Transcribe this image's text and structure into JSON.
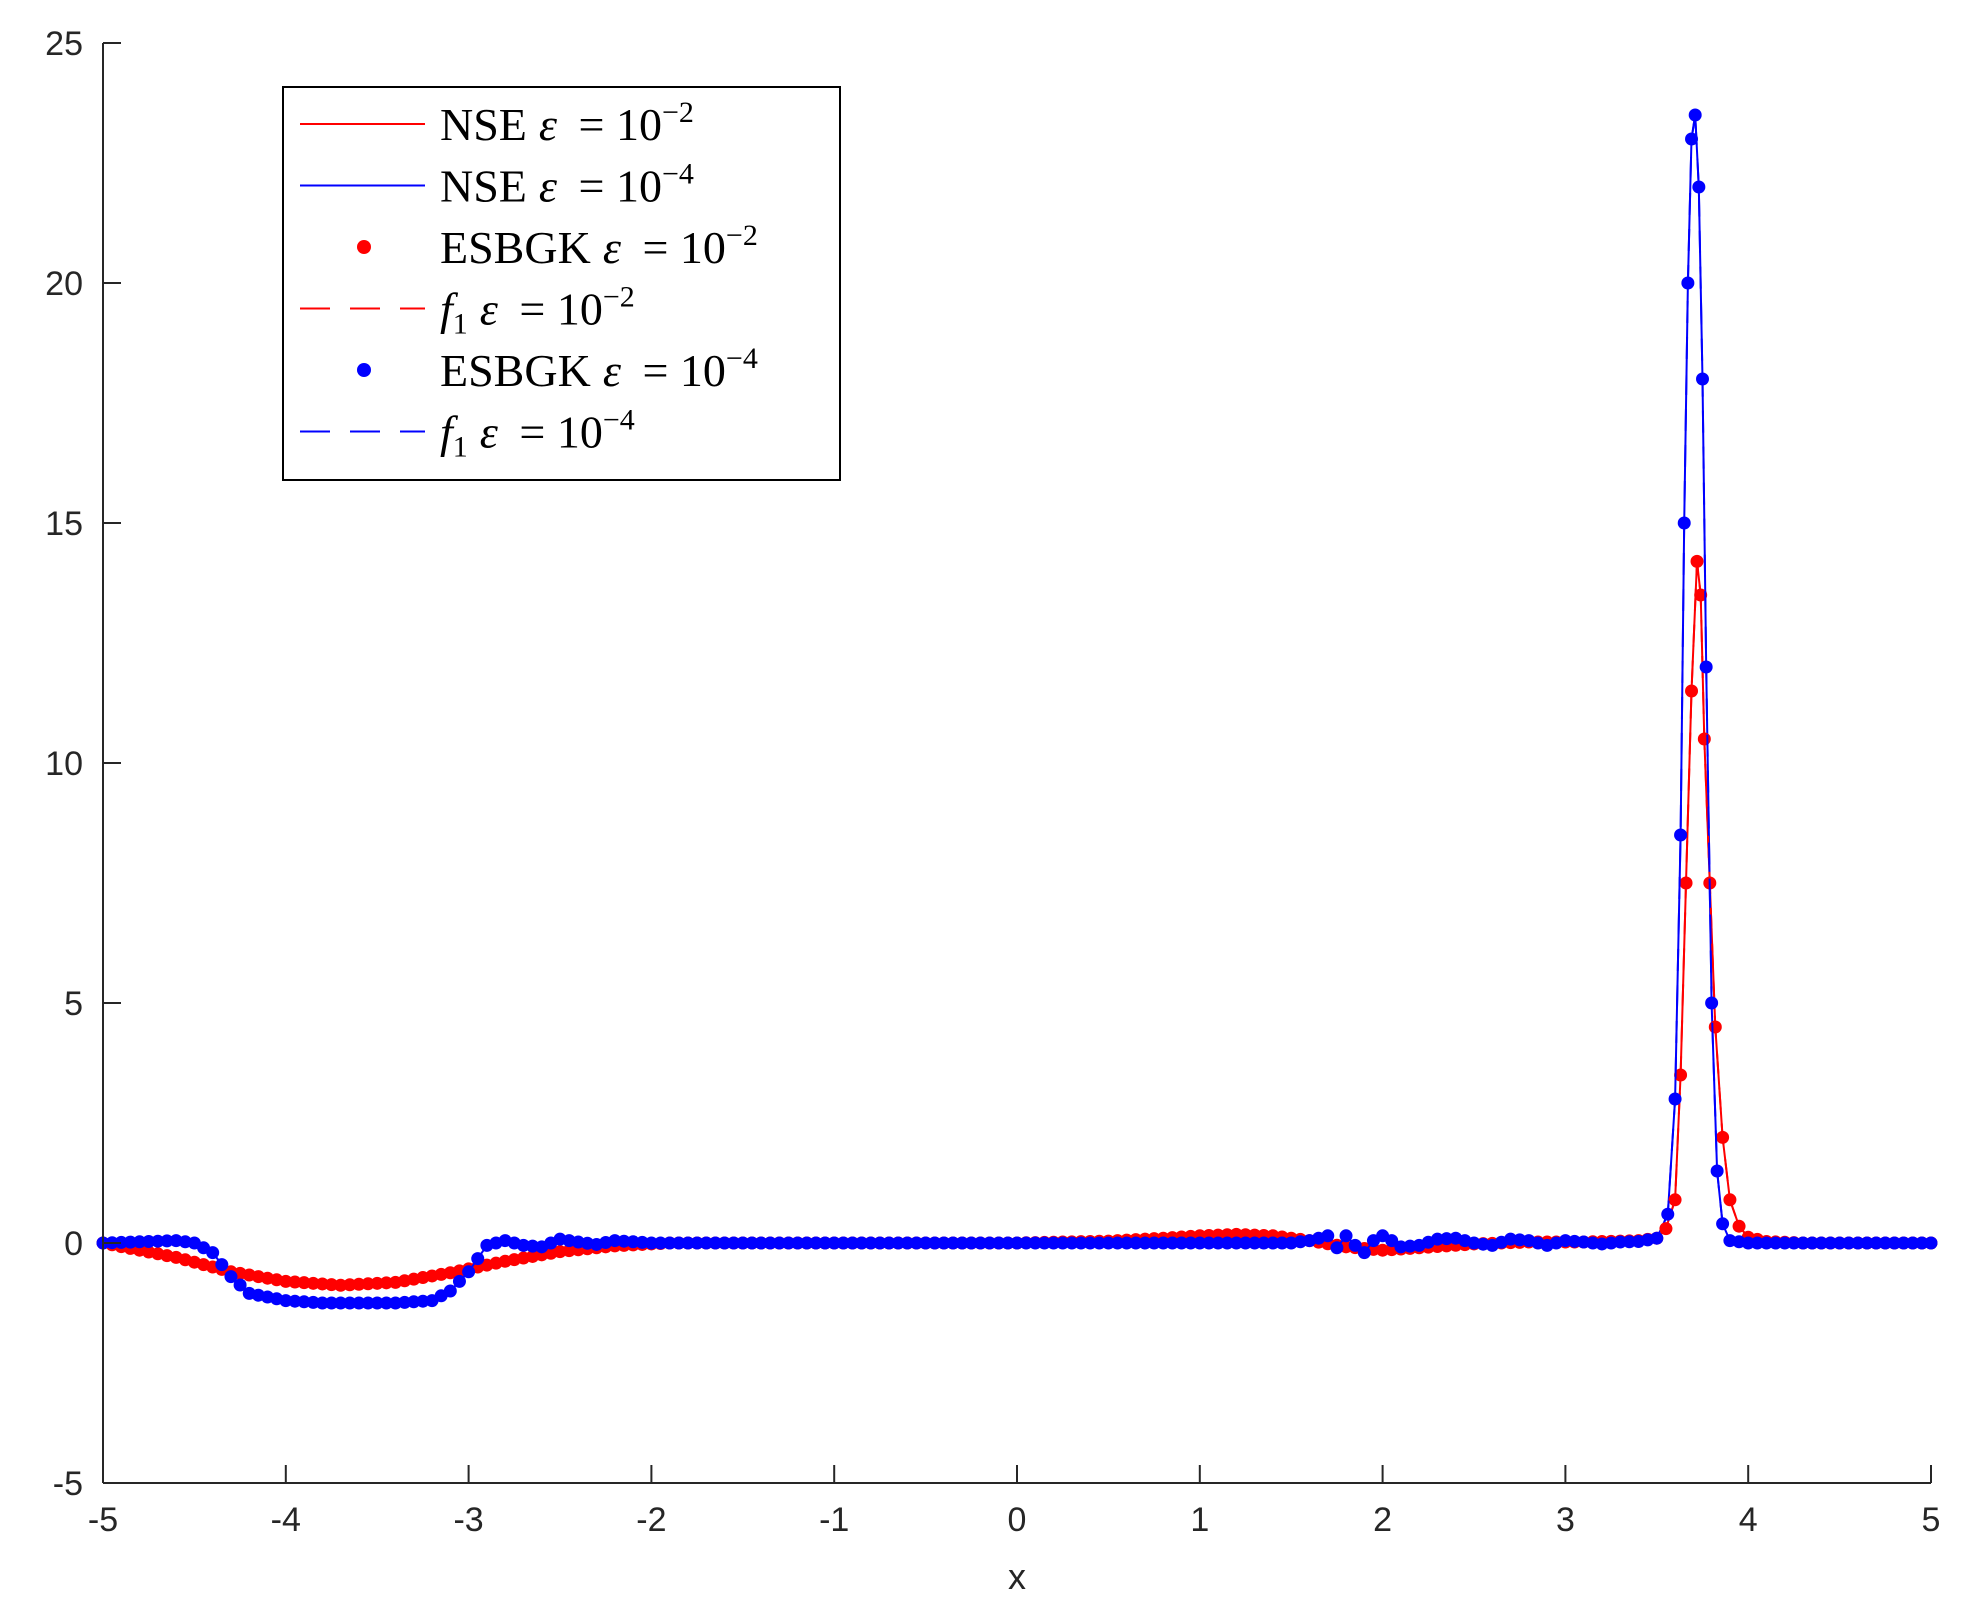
{
  "chart_data": {
    "type": "line",
    "title": "",
    "xlabel": "x",
    "ylabel": "",
    "xlim": [
      -5,
      5
    ],
    "ylim": [
      -5,
      25
    ],
    "xticks": [
      "-5",
      "-4",
      "-3",
      "-2",
      "-1",
      "0",
      "1",
      "2",
      "3",
      "4",
      "5"
    ],
    "yticks": [
      "-5",
      "0",
      "5",
      "10",
      "15",
      "20",
      "25"
    ],
    "grid": false,
    "legend_position": "top-left",
    "series": [
      {
        "name": "NSE ε = 10^-2",
        "style": "solid",
        "color": "#ff0000",
        "x": [
          -5,
          -4.6,
          -4.3,
          -4.0,
          -3.7,
          -3.4,
          -3.1,
          -2.8,
          -2.5,
          -2.2,
          -1.9,
          -1.5,
          -1,
          -0.5,
          0,
          0.5,
          0.8,
          1.0,
          1.2,
          1.4,
          1.6,
          1.8,
          2.0,
          2.2,
          2.5,
          2.8,
          3.1,
          3.4,
          3.5,
          3.55,
          3.6,
          3.63,
          3.66,
          3.69,
          3.72,
          3.74,
          3.76,
          3.79,
          3.82,
          3.86,
          3.9,
          3.95,
          4.0,
          4.1,
          4.3,
          4.6,
          5
        ],
        "y": [
          0,
          -0.3,
          -0.6,
          -0.8,
          -0.88,
          -0.82,
          -0.62,
          -0.38,
          -0.18,
          -0.06,
          0,
          0,
          0,
          0,
          0,
          0.04,
          0.1,
          0.15,
          0.18,
          0.15,
          0.05,
          -0.08,
          -0.15,
          -0.1,
          -0.02,
          0.02,
          0.02,
          0.05,
          0.1,
          0.3,
          0.9,
          3.5,
          7.5,
          11.5,
          14.2,
          13.5,
          10.5,
          7.5,
          4.5,
          2.2,
          0.9,
          0.35,
          0.12,
          0.03,
          0,
          0,
          0
        ]
      },
      {
        "name": "NSE ε = 10^-4",
        "style": "solid",
        "color": "#0000ff",
        "x": [
          -5,
          -4.6,
          -4.5,
          -4.4,
          -4.3,
          -4.2,
          -4.0,
          -3.8,
          -3.6,
          -3.4,
          -3.2,
          -3.1,
          -3.0,
          -2.9,
          -2.8,
          -2.7,
          -2.6,
          -2.5,
          -2.4,
          -2.3,
          -2.2,
          -2.0,
          -1.5,
          -1,
          0,
          1,
          1.5,
          1.6,
          1.7,
          1.75,
          1.8,
          1.85,
          1.9,
          1.95,
          2.0,
          2.05,
          2.1,
          2.2,
          2.3,
          2.4,
          2.5,
          2.6,
          2.7,
          2.8,
          2.9,
          3.0,
          3.1,
          3.2,
          3.3,
          3.4,
          3.5,
          3.56,
          3.6,
          3.63,
          3.65,
          3.67,
          3.69,
          3.71,
          3.73,
          3.75,
          3.77,
          3.8,
          3.83,
          3.86,
          3.9,
          4,
          4.5,
          5
        ],
        "y": [
          0,
          0.05,
          0,
          -0.2,
          -0.7,
          -1.05,
          -1.2,
          -1.25,
          -1.25,
          -1.25,
          -1.2,
          -1.0,
          -0.6,
          -0.05,
          0.05,
          -0.05,
          -0.08,
          0.08,
          0.02,
          -0.03,
          0.05,
          0,
          0,
          0,
          0,
          0,
          0,
          0.05,
          0.15,
          -0.1,
          0.15,
          -0.05,
          -0.2,
          0.05,
          0.15,
          0.05,
          -0.08,
          -0.05,
          0.08,
          0.1,
          0,
          -0.05,
          0.08,
          0.05,
          -0.05,
          0.05,
          0.02,
          -0.02,
          0.02,
          0.03,
          0.1,
          0.6,
          3.0,
          8.5,
          15.0,
          20.0,
          23.0,
          23.5,
          22.0,
          18.0,
          12.0,
          5.0,
          1.5,
          0.4,
          0.05,
          0,
          0,
          0
        ]
      },
      {
        "name": "ESBGK ε = 10^-2",
        "style": "dots",
        "color": "#ff0000",
        "x": [
          -5,
          -4.6,
          -4.3,
          -4.0,
          -3.7,
          -3.4,
          -3.1,
          -2.8,
          -2.5,
          -2.2,
          -1.9,
          -1.5,
          -1,
          -0.5,
          0,
          0.5,
          0.8,
          1.0,
          1.2,
          1.4,
          1.6,
          1.8,
          2.0,
          2.2,
          2.5,
          2.8,
          3.1,
          3.4,
          3.5,
          3.55,
          3.6,
          3.63,
          3.66,
          3.69,
          3.72,
          3.74,
          3.76,
          3.79,
          3.82,
          3.86,
          3.9,
          3.95,
          4.0,
          4.1,
          4.3,
          4.6,
          5
        ],
        "y": [
          0,
          -0.3,
          -0.6,
          -0.8,
          -0.88,
          -0.82,
          -0.62,
          -0.38,
          -0.18,
          -0.06,
          0,
          0,
          0,
          0,
          0,
          0.04,
          0.1,
          0.15,
          0.18,
          0.15,
          0.05,
          -0.08,
          -0.15,
          -0.1,
          -0.02,
          0.02,
          0.02,
          0.05,
          0.1,
          0.3,
          0.9,
          3.5,
          7.5,
          11.5,
          14.2,
          13.5,
          10.5,
          7.5,
          4.5,
          2.2,
          0.9,
          0.35,
          0.12,
          0.03,
          0,
          0,
          0
        ]
      },
      {
        "name": "f1 ε = 10^-2",
        "style": "dashed",
        "color": "#ff0000",
        "x": [
          -5,
          -4.6,
          -4.3,
          -4.0,
          -3.7,
          -3.4,
          -3.1,
          -2.8,
          -2.5,
          -2.2,
          -1.9,
          -1.5,
          -1,
          -0.5,
          0,
          0.5,
          0.8,
          1.0,
          1.2,
          1.4,
          1.6,
          1.8,
          2.0,
          2.2,
          2.5,
          2.8,
          3.1,
          3.4,
          3.5,
          3.55,
          3.6,
          3.63,
          3.66,
          3.69,
          3.72,
          3.74,
          3.76,
          3.79,
          3.82,
          3.86,
          3.9,
          3.95,
          4.0,
          4.1,
          4.3,
          4.6,
          5
        ],
        "y": [
          0,
          -0.3,
          -0.6,
          -0.8,
          -0.88,
          -0.82,
          -0.62,
          -0.38,
          -0.18,
          -0.06,
          0,
          0,
          0,
          0,
          0,
          0.04,
          0.1,
          0.15,
          0.18,
          0.15,
          0.05,
          -0.08,
          -0.15,
          -0.1,
          -0.02,
          0.02,
          0.02,
          0.05,
          0.1,
          0.3,
          0.9,
          3.5,
          7.5,
          11.5,
          14.2,
          13.5,
          10.5,
          7.5,
          4.5,
          2.2,
          0.9,
          0.35,
          0.12,
          0.03,
          0,
          0,
          0
        ]
      },
      {
        "name": "ESBGK ε = 10^-4",
        "style": "dots",
        "color": "#0000ff",
        "x": [
          -5,
          -4.6,
          -4.5,
          -4.4,
          -4.3,
          -4.2,
          -4.0,
          -3.8,
          -3.6,
          -3.4,
          -3.2,
          -3.1,
          -3.0,
          -2.9,
          -2.8,
          -2.7,
          -2.6,
          -2.5,
          -2.4,
          -2.3,
          -2.2,
          -2.0,
          -1.5,
          -1,
          0,
          1,
          1.5,
          1.6,
          1.7,
          1.75,
          1.8,
          1.85,
          1.9,
          1.95,
          2.0,
          2.05,
          2.1,
          2.2,
          2.3,
          2.4,
          2.5,
          2.6,
          2.7,
          2.8,
          2.9,
          3.0,
          3.1,
          3.2,
          3.3,
          3.4,
          3.5,
          3.56,
          3.6,
          3.63,
          3.65,
          3.67,
          3.69,
          3.71,
          3.73,
          3.75,
          3.77,
          3.8,
          3.83,
          3.86,
          3.9,
          4,
          4.5,
          5
        ],
        "y": [
          0,
          0.05,
          0,
          -0.2,
          -0.7,
          -1.05,
          -1.2,
          -1.25,
          -1.25,
          -1.25,
          -1.2,
          -1.0,
          -0.6,
          -0.05,
          0.05,
          -0.05,
          -0.08,
          0.08,
          0.02,
          -0.03,
          0.05,
          0,
          0,
          0,
          0,
          0,
          0,
          0.05,
          0.15,
          -0.1,
          0.15,
          -0.05,
          -0.2,
          0.05,
          0.15,
          0.05,
          -0.08,
          -0.05,
          0.08,
          0.1,
          0,
          -0.05,
          0.08,
          0.05,
          -0.05,
          0.05,
          0.02,
          -0.02,
          0.02,
          0.03,
          0.1,
          0.6,
          3.0,
          8.5,
          15.0,
          20.0,
          23.0,
          23.5,
          22.0,
          18.0,
          12.0,
          5.0,
          1.5,
          0.4,
          0.05,
          0,
          0,
          0
        ]
      },
      {
        "name": "f1 ε = 10^-4",
        "style": "dashed",
        "color": "#0000ff",
        "x": [
          -5,
          -4.6,
          -4.5,
          -4.4,
          -4.3,
          -4.2,
          -4.0,
          -3.8,
          -3.6,
          -3.4,
          -3.2,
          -3.1,
          -3.0,
          -2.9,
          -2.8,
          -2.7,
          -2.6,
          -2.5,
          -2.4,
          -2.3,
          -2.2,
          -2.0,
          -1.5,
          -1,
          0,
          1,
          1.5,
          1.6,
          1.7,
          1.75,
          1.8,
          1.85,
          1.9,
          1.95,
          2.0,
          2.05,
          2.1,
          2.2,
          2.3,
          2.4,
          2.5,
          2.6,
          2.7,
          2.8,
          2.9,
          3.0,
          3.1,
          3.2,
          3.3,
          3.4,
          3.5,
          3.56,
          3.6,
          3.63,
          3.65,
          3.67,
          3.69,
          3.71,
          3.73,
          3.75,
          3.77,
          3.8,
          3.83,
          3.86,
          3.9,
          4,
          4.5,
          5
        ],
        "y": [
          0,
          0.05,
          0,
          -0.2,
          -0.7,
          -1.05,
          -1.2,
          -1.25,
          -1.25,
          -1.25,
          -1.2,
          -1.0,
          -0.6,
          -0.05,
          0.05,
          -0.05,
          -0.08,
          0.08,
          0.02,
          -0.03,
          0.05,
          0,
          0,
          0,
          0,
          0,
          0,
          0.05,
          0.15,
          -0.1,
          0.15,
          -0.05,
          -0.2,
          0.05,
          0.15,
          0.05,
          -0.08,
          -0.05,
          0.08,
          0.1,
          0,
          -0.05,
          0.08,
          0.05,
          -0.05,
          0.05,
          0.02,
          -0.02,
          0.02,
          0.03,
          0.1,
          0.6,
          3.0,
          8.5,
          15.0,
          20.0,
          23.0,
          23.5,
          22.0,
          18.0,
          12.0,
          5.0,
          1.5,
          0.4,
          0.05,
          0,
          0,
          0
        ]
      }
    ]
  },
  "legend": {
    "entries": [
      {
        "prefix": "NSE",
        "sub": "",
        "exp": "−2"
      },
      {
        "prefix": "NSE",
        "sub": "",
        "exp": "−4"
      },
      {
        "prefix": "ESBGK",
        "sub": "",
        "exp": "−2"
      },
      {
        "prefix": "f",
        "sub": "1",
        "exp": "−2"
      },
      {
        "prefix": "ESBGK",
        "sub": "",
        "exp": "−4"
      },
      {
        "prefix": "f",
        "sub": "1",
        "exp": "−4"
      }
    ],
    "epsilon": "ε",
    "equals": "= 10"
  }
}
